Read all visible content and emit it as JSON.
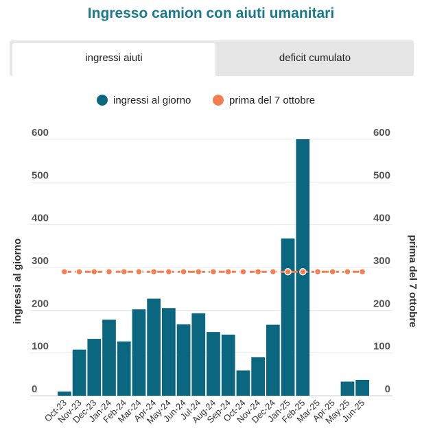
{
  "title": "Ingresso camion con aiuti umanitari",
  "tabs": [
    {
      "label": "ingressi aiuti",
      "active": true
    },
    {
      "label": "deficit cumulato",
      "active": false
    }
  ],
  "colors": {
    "title": "#1a7a8c",
    "bar": "#0b6680",
    "line": "#f47c4f"
  },
  "chart_data": {
    "type": "bar",
    "categories": [
      "Oct-23",
      "Nov-23",
      "Dec-23",
      "Jan-24",
      "Feb-24",
      "Mar-24",
      "Apr-24",
      "May-24",
      "Jun-24",
      "Jul-24",
      "Aug-24",
      "Sep-24",
      "Oct-24",
      "Nov-24",
      "Dec-24",
      "Jan-25",
      "Feb-25",
      "Mar-25",
      "Apr-25",
      "May-25",
      "Jun-25"
    ],
    "series": [
      {
        "name": "ingressi al giorno",
        "type": "bar",
        "values": [
          10,
          108,
          133,
          178,
          127,
          202,
          227,
          205,
          167,
          193,
          149,
          143,
          59,
          90,
          166,
          368,
          600,
          0,
          0,
          33,
          37
        ]
      },
      {
        "name": "prima del 7 ottobre",
        "type": "line",
        "values": [
          290,
          290,
          290,
          290,
          290,
          290,
          290,
          290,
          290,
          290,
          290,
          290,
          290,
          290,
          290,
          290,
          290,
          290,
          290,
          290,
          290
        ]
      }
    ],
    "ylabel_left": "ingressi al giorno",
    "ylabel_right": "prima del 7 ottobre",
    "yticks": [
      0,
      100,
      200,
      300,
      400,
      500,
      600
    ],
    "ylim": [
      0,
      600
    ],
    "grid": true,
    "legend_position": "top"
  }
}
